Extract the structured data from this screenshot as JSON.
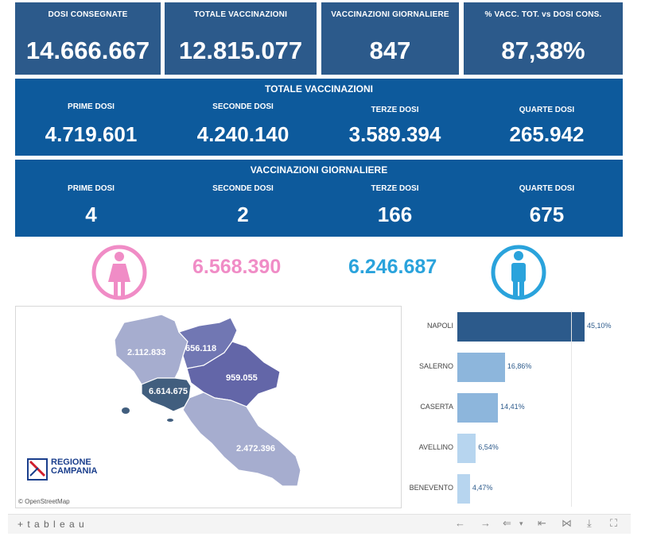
{
  "kpis": [
    {
      "label": "DOSI  CONSEGNATE",
      "value": "14.666.667"
    },
    {
      "label": "TOTALE VACCINAZIONI",
      "value": "12.815.077"
    },
    {
      "label": "VACCINAZIONI GIORNALIERE",
      "value": "847"
    },
    {
      "label": "% VACC. TOT. vs DOSI CONS.",
      "value": "87,38%"
    }
  ],
  "total_panel": {
    "title": "TOTALE VACCINAZIONI",
    "items": [
      {
        "label": "PRIME DOSI",
        "value": "4.719.601"
      },
      {
        "label": "SECONDE DOSI",
        "value": "4.240.140"
      },
      {
        "label": "TERZE DOSI",
        "value": "3.589.394"
      },
      {
        "label": "QUARTE DOSI",
        "value": "265.942"
      }
    ]
  },
  "daily_panel": {
    "title": "VACCINAZIONI GIORNALIERE",
    "items": [
      {
        "label": "PRIME DOSI",
        "value": "4"
      },
      {
        "label": "SECONDE DOSI",
        "value": "2"
      },
      {
        "label": "TERZE DOSI",
        "value": "166"
      },
      {
        "label": "QUARTE DOSI",
        "value": "675"
      }
    ]
  },
  "gender": {
    "female_value": "6.568.390",
    "male_value": "6.246.687",
    "female_color": "#f08cc6",
    "male_color": "#2aa3dc"
  },
  "map": {
    "provinces": [
      {
        "name": "caserta",
        "value": "2.112.833"
      },
      {
        "name": "benevento",
        "value": "656.118"
      },
      {
        "name": "avellino",
        "value": "959.055"
      },
      {
        "name": "napoli",
        "value": "6.614.675"
      },
      {
        "name": "salerno",
        "value": "2.472.396"
      }
    ],
    "logo_line1": "REGIONE",
    "logo_line2": "CAMPANIA",
    "attribution": "© OpenStreetMap"
  },
  "chart_data": {
    "type": "bar",
    "orientation": "horizontal",
    "categories": [
      "NAPOLI",
      "SALERNO",
      "CASERTA",
      "AVELLINO",
      "BENEVENTO"
    ],
    "values": [
      45.1,
      16.86,
      14.41,
      6.54,
      4.47
    ],
    "labels": [
      "45,10%",
      "16,86%",
      "14,41%",
      "6,54%",
      "4,47%"
    ],
    "colors": [
      "#2c5a8b",
      "#8db6dc",
      "#8db6dc",
      "#b7d5ef",
      "#b7d5ef"
    ],
    "grid": false
  },
  "toolbar": {
    "brand": "+ t a b l e a u",
    "undo": "←",
    "redo": "→",
    "revert": "⇐",
    "dropdown": "▾",
    "reset": "⇤",
    "share": "⋈",
    "download": "⤓",
    "fullscreen": "⛶"
  }
}
